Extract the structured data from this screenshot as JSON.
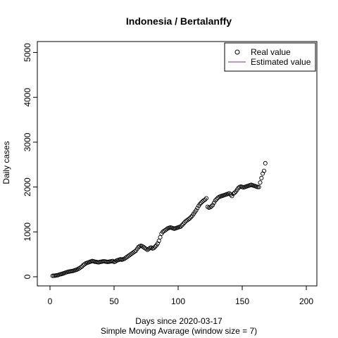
{
  "chart_data": {
    "type": "scatter",
    "title": "Indonesia / Bertalanffy",
    "xlabel": "Days since 2020-03-17",
    "subtitle": "Simple Moving Avarage (window size = 7)",
    "ylabel": "Daily cases",
    "xlim": [
      0,
      200
    ],
    "ylim": [
      0,
      5200
    ],
    "xticks": [
      0,
      50,
      100,
      150,
      200
    ],
    "yticks": [
      0,
      1000,
      2000,
      3000,
      4000,
      5000
    ],
    "grid": false,
    "legend_position": "top-right",
    "series": [
      {
        "name": "Real value",
        "marker": "open-circle",
        "color": "#000000",
        "x": [
          2,
          3,
          4,
          5,
          6,
          7,
          8,
          9,
          10,
          11,
          12,
          13,
          14,
          15,
          16,
          17,
          18,
          19,
          20,
          21,
          22,
          23,
          24,
          25,
          26,
          27,
          28,
          29,
          30,
          31,
          32,
          33,
          34,
          35,
          36,
          37,
          38,
          39,
          40,
          41,
          42,
          43,
          44,
          45,
          46,
          47,
          48,
          49,
          50,
          51,
          52,
          53,
          54,
          55,
          56,
          57,
          58,
          59,
          60,
          61,
          62,
          63,
          64,
          65,
          66,
          67,
          68,
          69,
          70,
          71,
          72,
          73,
          74,
          75,
          76,
          77,
          78,
          79,
          80,
          81,
          82,
          83,
          84,
          85,
          86,
          87,
          88,
          89,
          90,
          91,
          92,
          93,
          94,
          95,
          96,
          97,
          98,
          99,
          100,
          101,
          102,
          103,
          104,
          105,
          106,
          107,
          108,
          109,
          110,
          111,
          112,
          113,
          114,
          115,
          116,
          117,
          118,
          119,
          120,
          121,
          122,
          123,
          124,
          125,
          126,
          127,
          128,
          129,
          130,
          131,
          132,
          133,
          134,
          135,
          136,
          137,
          138,
          139,
          140,
          141,
          142,
          143,
          144,
          145,
          146,
          147,
          148,
          149,
          150,
          151,
          152,
          153,
          154,
          155,
          156,
          157,
          158,
          159,
          160,
          161,
          162,
          163,
          164,
          165,
          166,
          167,
          168
        ],
        "y": [
          20,
          22,
          25,
          30,
          35,
          45,
          55,
          60,
          70,
          80,
          90,
          100,
          110,
          115,
          120,
          125,
          130,
          140,
          150,
          160,
          175,
          190,
          210,
          230,
          260,
          280,
          300,
          310,
          320,
          330,
          340,
          350,
          345,
          335,
          330,
          325,
          320,
          330,
          335,
          340,
          345,
          340,
          335,
          330,
          335,
          340,
          345,
          350,
          330,
          340,
          360,
          370,
          380,
          390,
          380,
          390,
          400,
          420,
          440,
          460,
          480,
          500,
          520,
          540,
          560,
          580,
          620,
          660,
          680,
          690,
          680,
          660,
          640,
          620,
          600,
          620,
          640,
          650,
          630,
          640,
          670,
          700,
          740,
          800,
          880,
          960,
          1000,
          1020,
          1040,
          1060,
          1080,
          1090,
          1100,
          1090,
          1080,
          1070,
          1080,
          1090,
          1100,
          1110,
          1120,
          1150,
          1180,
          1210,
          1240,
          1260,
          1280,
          1300,
          1330,
          1360,
          1400,
          1440,
          1480,
          1530,
          1580,
          1620,
          1650,
          1680,
          1700,
          1720,
          1750,
          1560,
          1540,
          1550,
          1570,
          1600,
          1650,
          1700,
          1730,
          1760,
          1780,
          1790,
          1800,
          1810,
          1820,
          1830,
          1840,
          1850,
          1860,
          1830,
          1800,
          1850,
          1870,
          1900,
          1940,
          1980,
          2000,
          2010,
          2000,
          1990,
          2000,
          2010,
          2020,
          2030,
          2040,
          2050,
          2040,
          2030,
          2020,
          2010,
          2000,
          2000,
          2100,
          2200,
          2300,
          2360,
          2530
        ]
      },
      {
        "name": "Estimated value",
        "marker": "line",
        "color": "#7b2d8e",
        "x": [],
        "y": []
      }
    ]
  }
}
